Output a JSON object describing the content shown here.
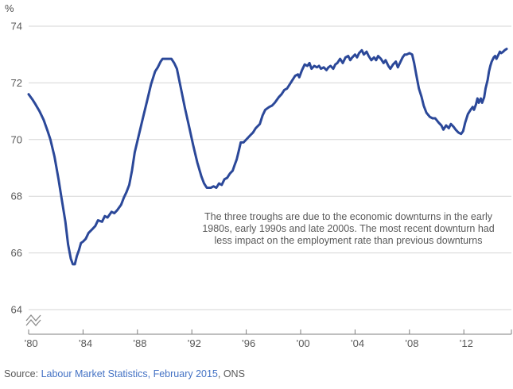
{
  "chart_data": {
    "type": "line",
    "title": "",
    "ylabel": "%",
    "xlabel": "",
    "grid": "horizontal",
    "legend": "none",
    "axis_break": true,
    "ylim": [
      64,
      74
    ],
    "xlim": [
      1980,
      2015.5
    ],
    "y_ticks": [
      74,
      72,
      70,
      68,
      66,
      64
    ],
    "x_ticks": [
      {
        "value": 1980,
        "label": "’80"
      },
      {
        "value": 1984,
        "label": "’84"
      },
      {
        "value": 1988,
        "label": "’88"
      },
      {
        "value": 1992,
        "label": "’92"
      },
      {
        "value": 1996,
        "label": "’96"
      },
      {
        "value": 2000,
        "label": "’00"
      },
      {
        "value": 2004,
        "label": "’04"
      },
      {
        "value": 2008,
        "label": "’08"
      },
      {
        "value": 2012,
        "label": "’12"
      }
    ],
    "annotation_lines": [
      "The three troughs are due to the economic downturns in the early",
      "1980s, early 1990s and late 2000s. The most recent downturn had",
      "less impact on the employment rate than previous downturns"
    ],
    "colors": {
      "line": "#2B4899",
      "grid": "#D6D6D6",
      "axis": "#7F7F7F",
      "text": "#595959"
    },
    "series": [
      {
        "name": "Employment rate",
        "color": "#2B4899",
        "points": [
          [
            1980.0,
            71.6
          ],
          [
            1980.3,
            71.4
          ],
          [
            1980.5,
            71.25
          ],
          [
            1980.8,
            71.0
          ],
          [
            1981.1,
            70.7
          ],
          [
            1981.4,
            70.3
          ],
          [
            1981.6,
            70.0
          ],
          [
            1981.9,
            69.4
          ],
          [
            1982.2,
            68.6
          ],
          [
            1982.4,
            68.0
          ],
          [
            1982.7,
            67.1
          ],
          [
            1982.9,
            66.3
          ],
          [
            1983.1,
            65.8
          ],
          [
            1983.25,
            65.6
          ],
          [
            1983.4,
            65.6
          ],
          [
            1983.55,
            65.9
          ],
          [
            1983.7,
            66.1
          ],
          [
            1983.85,
            66.35
          ],
          [
            1984.0,
            66.4
          ],
          [
            1984.2,
            66.5
          ],
          [
            1984.4,
            66.7
          ],
          [
            1984.7,
            66.85
          ],
          [
            1984.9,
            66.95
          ],
          [
            1985.1,
            67.15
          ],
          [
            1985.4,
            67.1
          ],
          [
            1985.6,
            67.3
          ],
          [
            1985.8,
            67.25
          ],
          [
            1986.1,
            67.45
          ],
          [
            1986.3,
            67.4
          ],
          [
            1986.5,
            67.5
          ],
          [
            1986.8,
            67.7
          ],
          [
            1987.0,
            67.95
          ],
          [
            1987.2,
            68.15
          ],
          [
            1987.4,
            68.4
          ],
          [
            1987.6,
            68.9
          ],
          [
            1987.8,
            69.55
          ],
          [
            1988.1,
            70.15
          ],
          [
            1988.4,
            70.75
          ],
          [
            1988.7,
            71.35
          ],
          [
            1989.0,
            71.95
          ],
          [
            1989.3,
            72.4
          ],
          [
            1989.5,
            72.55
          ],
          [
            1989.7,
            72.75
          ],
          [
            1989.85,
            72.85
          ],
          [
            1990.2,
            72.85
          ],
          [
            1990.5,
            72.85
          ],
          [
            1990.7,
            72.7
          ],
          [
            1990.9,
            72.5
          ],
          [
            1991.2,
            71.8
          ],
          [
            1991.5,
            71.1
          ],
          [
            1991.8,
            70.45
          ],
          [
            1992.1,
            69.8
          ],
          [
            1992.4,
            69.2
          ],
          [
            1992.7,
            68.7
          ],
          [
            1992.9,
            68.45
          ],
          [
            1993.1,
            68.3
          ],
          [
            1993.4,
            68.3
          ],
          [
            1993.6,
            68.35
          ],
          [
            1993.8,
            68.3
          ],
          [
            1994.0,
            68.45
          ],
          [
            1994.2,
            68.4
          ],
          [
            1994.4,
            68.6
          ],
          [
            1994.6,
            68.65
          ],
          [
            1994.8,
            68.8
          ],
          [
            1995.0,
            68.9
          ],
          [
            1995.15,
            69.1
          ],
          [
            1995.3,
            69.3
          ],
          [
            1995.45,
            69.6
          ],
          [
            1995.6,
            69.9
          ],
          [
            1995.8,
            69.9
          ],
          [
            1996.1,
            70.05
          ],
          [
            1996.3,
            70.15
          ],
          [
            1996.5,
            70.25
          ],
          [
            1996.7,
            70.4
          ],
          [
            1997.0,
            70.55
          ],
          [
            1997.2,
            70.85
          ],
          [
            1997.4,
            71.05
          ],
          [
            1997.7,
            71.15
          ],
          [
            1997.9,
            71.2
          ],
          [
            1998.1,
            71.3
          ],
          [
            1998.4,
            71.5
          ],
          [
            1998.6,
            71.6
          ],
          [
            1998.8,
            71.75
          ],
          [
            1999.0,
            71.8
          ],
          [
            1999.2,
            71.95
          ],
          [
            1999.4,
            72.1
          ],
          [
            1999.6,
            72.25
          ],
          [
            1999.8,
            72.3
          ],
          [
            1999.9,
            72.2
          ],
          [
            2000.1,
            72.45
          ],
          [
            2000.3,
            72.65
          ],
          [
            2000.5,
            72.6
          ],
          [
            2000.65,
            72.7
          ],
          [
            2000.8,
            72.5
          ],
          [
            2001.0,
            72.6
          ],
          [
            2001.2,
            72.55
          ],
          [
            2001.35,
            72.6
          ],
          [
            2001.5,
            72.5
          ],
          [
            2001.7,
            72.55
          ],
          [
            2001.9,
            72.45
          ],
          [
            2002.05,
            72.55
          ],
          [
            2002.2,
            72.6
          ],
          [
            2002.4,
            72.5
          ],
          [
            2002.55,
            72.65
          ],
          [
            2002.7,
            72.7
          ],
          [
            2002.9,
            72.85
          ],
          [
            2003.1,
            72.7
          ],
          [
            2003.3,
            72.9
          ],
          [
            2003.5,
            72.95
          ],
          [
            2003.65,
            72.8
          ],
          [
            2003.8,
            72.9
          ],
          [
            2004.0,
            73.0
          ],
          [
            2004.15,
            72.9
          ],
          [
            2004.3,
            73.05
          ],
          [
            2004.5,
            73.15
          ],
          [
            2004.65,
            73.0
          ],
          [
            2004.85,
            73.1
          ],
          [
            2005.0,
            72.95
          ],
          [
            2005.2,
            72.8
          ],
          [
            2005.4,
            72.9
          ],
          [
            2005.55,
            72.8
          ],
          [
            2005.7,
            72.95
          ],
          [
            2005.9,
            72.85
          ],
          [
            2006.1,
            72.7
          ],
          [
            2006.25,
            72.8
          ],
          [
            2006.45,
            72.6
          ],
          [
            2006.6,
            72.5
          ],
          [
            2006.8,
            72.65
          ],
          [
            2007.0,
            72.75
          ],
          [
            2007.15,
            72.55
          ],
          [
            2007.3,
            72.7
          ],
          [
            2007.5,
            72.9
          ],
          [
            2007.65,
            73.0
          ],
          [
            2007.8,
            73.0
          ],
          [
            2008.0,
            73.05
          ],
          [
            2008.2,
            73.0
          ],
          [
            2008.35,
            72.7
          ],
          [
            2008.5,
            72.3
          ],
          [
            2008.7,
            71.8
          ],
          [
            2008.9,
            71.5
          ],
          [
            2009.05,
            71.2
          ],
          [
            2009.25,
            70.95
          ],
          [
            2009.5,
            70.8
          ],
          [
            2009.7,
            70.75
          ],
          [
            2009.9,
            70.75
          ],
          [
            2010.15,
            70.6
          ],
          [
            2010.35,
            70.5
          ],
          [
            2010.5,
            70.35
          ],
          [
            2010.7,
            70.5
          ],
          [
            2010.9,
            70.4
          ],
          [
            2011.05,
            70.55
          ],
          [
            2011.25,
            70.45
          ],
          [
            2011.4,
            70.35
          ],
          [
            2011.6,
            70.25
          ],
          [
            2011.8,
            70.2
          ],
          [
            2011.95,
            70.3
          ],
          [
            2012.1,
            70.6
          ],
          [
            2012.3,
            70.9
          ],
          [
            2012.5,
            71.05
          ],
          [
            2012.65,
            71.15
          ],
          [
            2012.75,
            71.05
          ],
          [
            2012.9,
            71.25
          ],
          [
            2013.0,
            71.45
          ],
          [
            2013.1,
            71.3
          ],
          [
            2013.25,
            71.45
          ],
          [
            2013.35,
            71.3
          ],
          [
            2013.5,
            71.5
          ],
          [
            2013.6,
            71.8
          ],
          [
            2013.75,
            72.1
          ],
          [
            2013.85,
            72.4
          ],
          [
            2013.95,
            72.6
          ],
          [
            2014.05,
            72.75
          ],
          [
            2014.2,
            72.9
          ],
          [
            2014.3,
            72.95
          ],
          [
            2014.4,
            72.85
          ],
          [
            2014.55,
            73.0
          ],
          [
            2014.65,
            73.1
          ],
          [
            2014.75,
            73.05
          ],
          [
            2014.9,
            73.1
          ],
          [
            2015.0,
            73.15
          ],
          [
            2015.15,
            73.2
          ]
        ]
      }
    ]
  },
  "source": {
    "prefix": "Source: ",
    "link_text": "Labour Market Statistics, February 2015",
    "suffix": ", ONS"
  }
}
